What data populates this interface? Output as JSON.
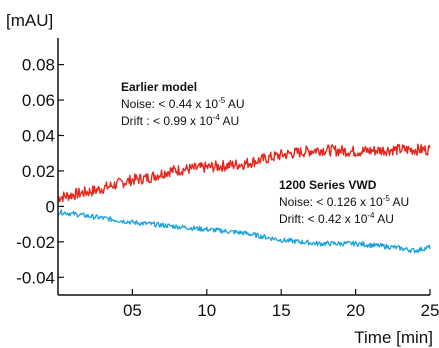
{
  "chart_data": {
    "type": "line",
    "title": "",
    "ylabel": "[mAU]",
    "xlabel": "Time [min]",
    "xlim": [
      0,
      25
    ],
    "ylim": [
      -0.05,
      0.095
    ],
    "grid": false,
    "y_ticks": [
      {
        "value": 0.08,
        "label": "0.08"
      },
      {
        "value": 0.06,
        "label": "0.06"
      },
      {
        "value": 0.04,
        "label": "0.04"
      },
      {
        "value": 0.02,
        "label": "0.02"
      },
      {
        "value": 0,
        "label": "0"
      },
      {
        "value": -0.02,
        "label": "-0.02"
      },
      {
        "value": -0.04,
        "label": "-0.04"
      }
    ],
    "x_ticks": [
      {
        "value": 5,
        "label": "05"
      },
      {
        "value": 10,
        "label": "10"
      },
      {
        "value": 15,
        "label": "15"
      },
      {
        "value": 20,
        "label": "20"
      },
      {
        "value": 25,
        "label": "25"
      }
    ],
    "series": [
      {
        "name": "Earlier model",
        "color": "#e8261c",
        "x": [
          0,
          2.5,
          5,
          6,
          7.5,
          10,
          12.5,
          15,
          17.5,
          20,
          22.5,
          25
        ],
        "y": [
          0.005,
          0.009,
          0.015,
          0.016,
          0.02,
          0.022,
          0.024,
          0.029,
          0.032,
          0.031,
          0.032,
          0.032
        ]
      },
      {
        "name": "1200 Series VWD",
        "color": "#1aa3dc",
        "x": [
          0,
          2.5,
          5,
          7.5,
          10,
          12.5,
          15,
          17.5,
          20,
          22.5,
          24,
          25
        ],
        "y": [
          -0.003,
          -0.006,
          -0.009,
          -0.011,
          -0.013,
          -0.015,
          -0.019,
          -0.021,
          -0.021,
          -0.023,
          -0.025,
          -0.023
        ]
      }
    ],
    "annotations": [
      {
        "title": "Earlier model",
        "noise": {
          "pre": "Noise: < 0.44 x 10",
          "exp": "-5",
          "post": " AU"
        },
        "drift": {
          "pre": "Drift : < 0.99 x 10",
          "exp": "-4",
          "post": "  AU"
        }
      },
      {
        "title": "1200 Series VWD",
        "noise": {
          "pre": "Noise: < 0.126 x 10",
          "exp": "-5",
          "post": " AU"
        },
        "drift": {
          "pre": "Drift: < 0.42 x 10",
          "exp": "-4",
          "post": " AU"
        }
      }
    ]
  }
}
